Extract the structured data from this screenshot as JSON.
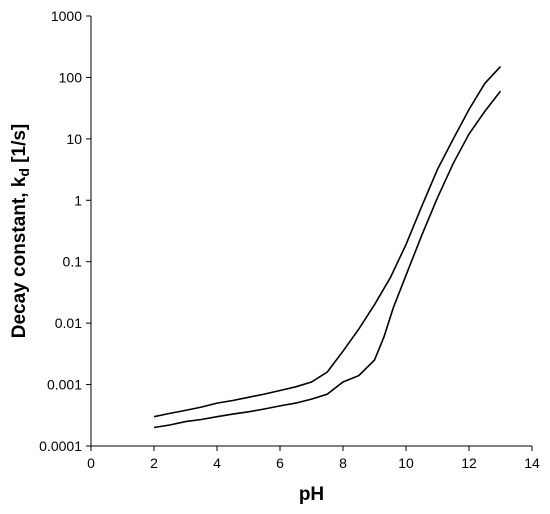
{
  "chart_data": {
    "type": "line",
    "title": "",
    "xlabel": "pH",
    "ylabel_main": "Decay constant, k",
    "ylabel_sub": "d",
    "ylabel_unit": " [1/s]",
    "xlim": [
      0,
      14
    ],
    "ylim": [
      0.0001,
      1000
    ],
    "y_scale": "log",
    "grid": false,
    "legend": "none",
    "x_ticks": [
      0,
      2,
      4,
      6,
      8,
      10,
      12,
      14
    ],
    "x_tick_labels": [
      "0",
      "2",
      "4",
      "6",
      "8",
      "10",
      "12",
      "14"
    ],
    "y_ticks": [
      0.0001,
      0.001,
      0.01,
      0.1,
      1,
      10,
      100,
      1000
    ],
    "y_tick_labels": [
      "0.0001",
      "0.001",
      "0.01",
      "0.1",
      "1",
      "10",
      "100",
      "1000"
    ],
    "series": [
      {
        "x": [
          2,
          2.5,
          3,
          3.5,
          4,
          4.5,
          5,
          5.5,
          6,
          6.5,
          7,
          7.5,
          8,
          8.5,
          9,
          9.5,
          10,
          10.5,
          11,
          11.5,
          12,
          12.5,
          13
        ],
        "y": [
          0.0003,
          0.00034,
          0.00038,
          0.00043,
          0.0005,
          0.00055,
          0.00062,
          0.0007,
          0.0008,
          0.00092,
          0.0011,
          0.0016,
          0.0035,
          0.008,
          0.02,
          0.055,
          0.19,
          0.8,
          3.2,
          10,
          30,
          80,
          150
        ]
      },
      {
        "x": [
          2,
          2.5,
          3,
          3.5,
          4,
          4.5,
          5,
          5.5,
          6,
          6.5,
          7,
          7.5,
          8,
          8.5,
          9,
          9.3,
          9.6,
          10,
          10.5,
          11,
          11.5,
          12,
          12.5,
          13
        ],
        "y": [
          0.0002,
          0.00022,
          0.00025,
          0.00027,
          0.0003,
          0.00033,
          0.00036,
          0.0004,
          0.00045,
          0.0005,
          0.00058,
          0.0007,
          0.0011,
          0.0014,
          0.0025,
          0.006,
          0.018,
          0.06,
          0.27,
          1.1,
          4,
          12,
          28,
          60
        ]
      }
    ]
  }
}
